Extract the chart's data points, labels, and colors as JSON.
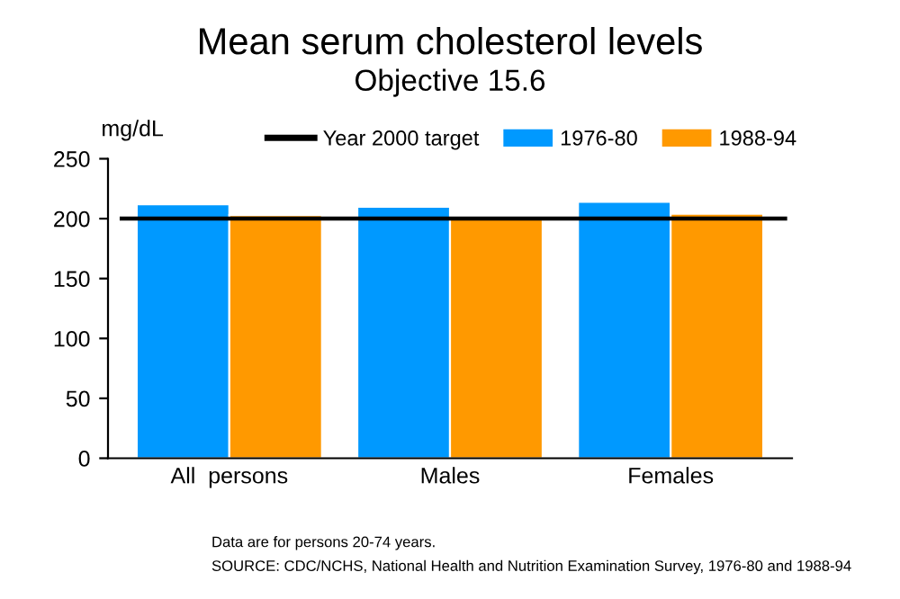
{
  "chart_data": {
    "type": "bar",
    "title": "Mean serum cholesterol levels",
    "subtitle": "Objective 15.6",
    "ylabel": "mg/dL",
    "categories": [
      "All  persons",
      "Males",
      "Females"
    ],
    "series": [
      {
        "name": "1976-80",
        "color": "#0099ff",
        "values": [
          212,
          210,
          214
        ]
      },
      {
        "name": "1988-94",
        "color": "#ff9900",
        "values": [
          203,
          201,
          204
        ]
      }
    ],
    "ylim": [
      0,
      250
    ],
    "yticks": [
      0,
      50,
      100,
      150,
      200,
      250
    ],
    "grid": false,
    "legend": "top",
    "ref_lines": [
      {
        "axis": "y",
        "value": 200,
        "label": "Year 2000 target",
        "color": "#000000",
        "line_style": "solid"
      }
    ],
    "annotations": [
      "Data are for persons 20-74 years.",
      "SOURCE: CDC/NCHS, National Health and Nutrition Examination Survey, 1976-80 and 1988-94"
    ]
  }
}
